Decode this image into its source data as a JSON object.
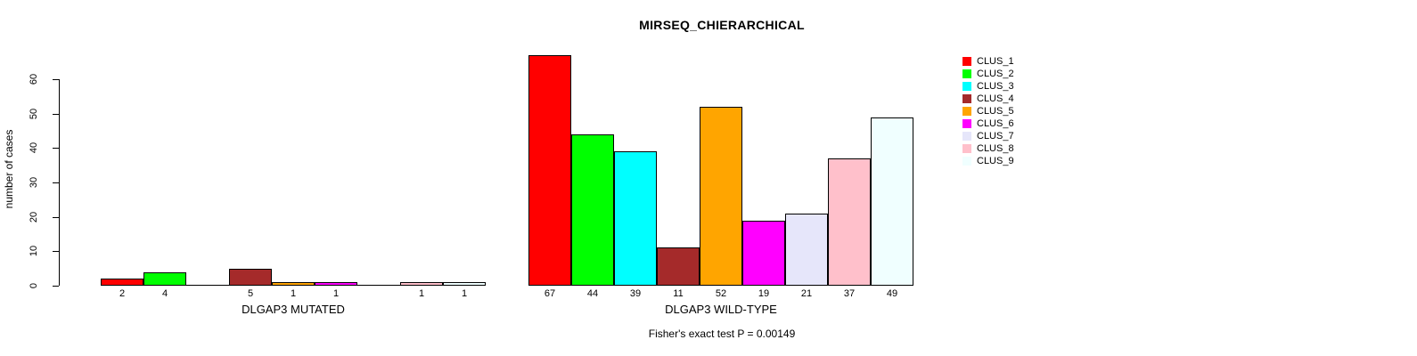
{
  "chart_data": {
    "type": "bar",
    "title": "MIRSEQ_CHIERARCHICAL",
    "ylabel": "number of cases",
    "xlabel": "",
    "ylim": [
      0,
      60
    ],
    "yticks": [
      0,
      10,
      20,
      30,
      40,
      50,
      60
    ],
    "grid": false,
    "legend_position": "right",
    "annotation": "Fisher's exact test P = 0.00149",
    "clusters": [
      {
        "name": "CLUS_1",
        "color": "#FF0000"
      },
      {
        "name": "CLUS_2",
        "color": "#00FF00"
      },
      {
        "name": "CLUS_3",
        "color": "#00FFFF"
      },
      {
        "name": "CLUS_4",
        "color": "#A52A2A"
      },
      {
        "name": "CLUS_5",
        "color": "#FFA500"
      },
      {
        "name": "CLUS_6",
        "color": "#FF00FF"
      },
      {
        "name": "CLUS_7",
        "color": "#E6E6FA"
      },
      {
        "name": "CLUS_8",
        "color": "#FFC0CB"
      },
      {
        "name": "CLUS_9",
        "color": "#F0FFFF"
      }
    ],
    "groups": [
      {
        "label": "DLGAP3 MUTATED",
        "values": [
          2,
          4,
          0,
          5,
          1,
          1,
          0,
          1,
          1
        ]
      },
      {
        "label": "DLGAP3 WILD-TYPE",
        "values": [
          67,
          44,
          39,
          11,
          52,
          19,
          21,
          37,
          49
        ]
      }
    ],
    "colors": {
      "bar_border": "#000000",
      "axis": "#000000",
      "background": "#FFFFFF"
    }
  }
}
